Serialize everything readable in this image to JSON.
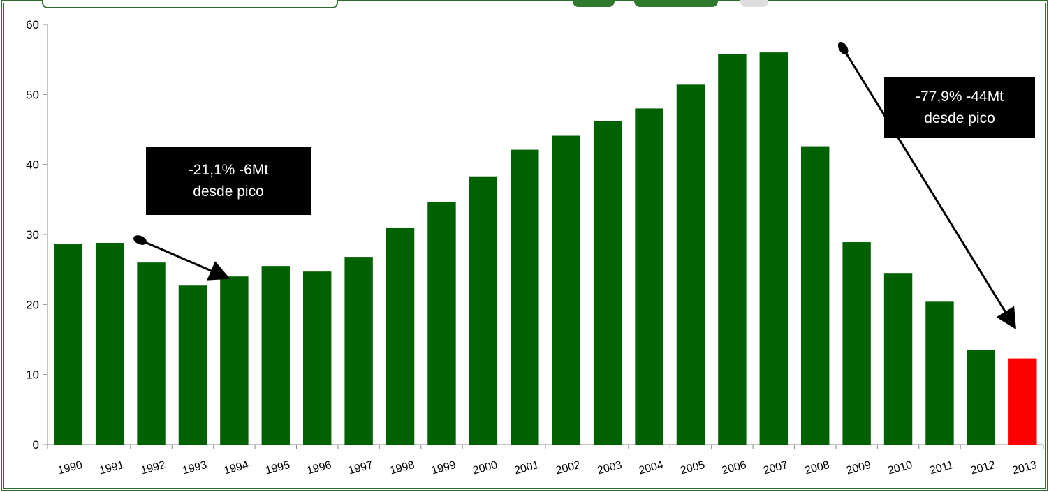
{
  "chart_data": {
    "type": "bar",
    "categories": [
      "1990",
      "1991",
      "1992",
      "1993",
      "1994",
      "1995",
      "1996",
      "1997",
      "1998",
      "1999",
      "2000",
      "2001",
      "2002",
      "2003",
      "2004",
      "2005",
      "2006",
      "2007",
      "2008",
      "2009",
      "2010",
      "2011",
      "2012",
      "2013"
    ],
    "values": [
      28.6,
      28.8,
      26.0,
      22.7,
      24.0,
      25.5,
      24.7,
      26.8,
      31.0,
      34.6,
      38.3,
      42.1,
      44.1,
      46.2,
      48.0,
      51.4,
      55.8,
      56.0,
      42.6,
      28.9,
      24.5,
      20.4,
      13.5,
      12.3
    ],
    "highlight_index": 23,
    "colors": {
      "bar": "#006100",
      "highlight": "#ff0000"
    },
    "ylim": [
      0,
      60
    ],
    "yticks": [
      "0",
      "10",
      "20",
      "30",
      "40",
      "50",
      "60"
    ],
    "grid": false,
    "annotations": [
      {
        "line1": "-21,1% -6Mt",
        "line2": "desde pico",
        "from_category": "1992",
        "from_value": 29.2,
        "to_category": "1994",
        "to_value": 24.0
      },
      {
        "line1": "-77,9% -44Mt",
        "line2": "desde pico",
        "from_category": "2008",
        "from_value": 56.6,
        "to_category": "2013",
        "to_value": 17.2
      }
    ]
  }
}
